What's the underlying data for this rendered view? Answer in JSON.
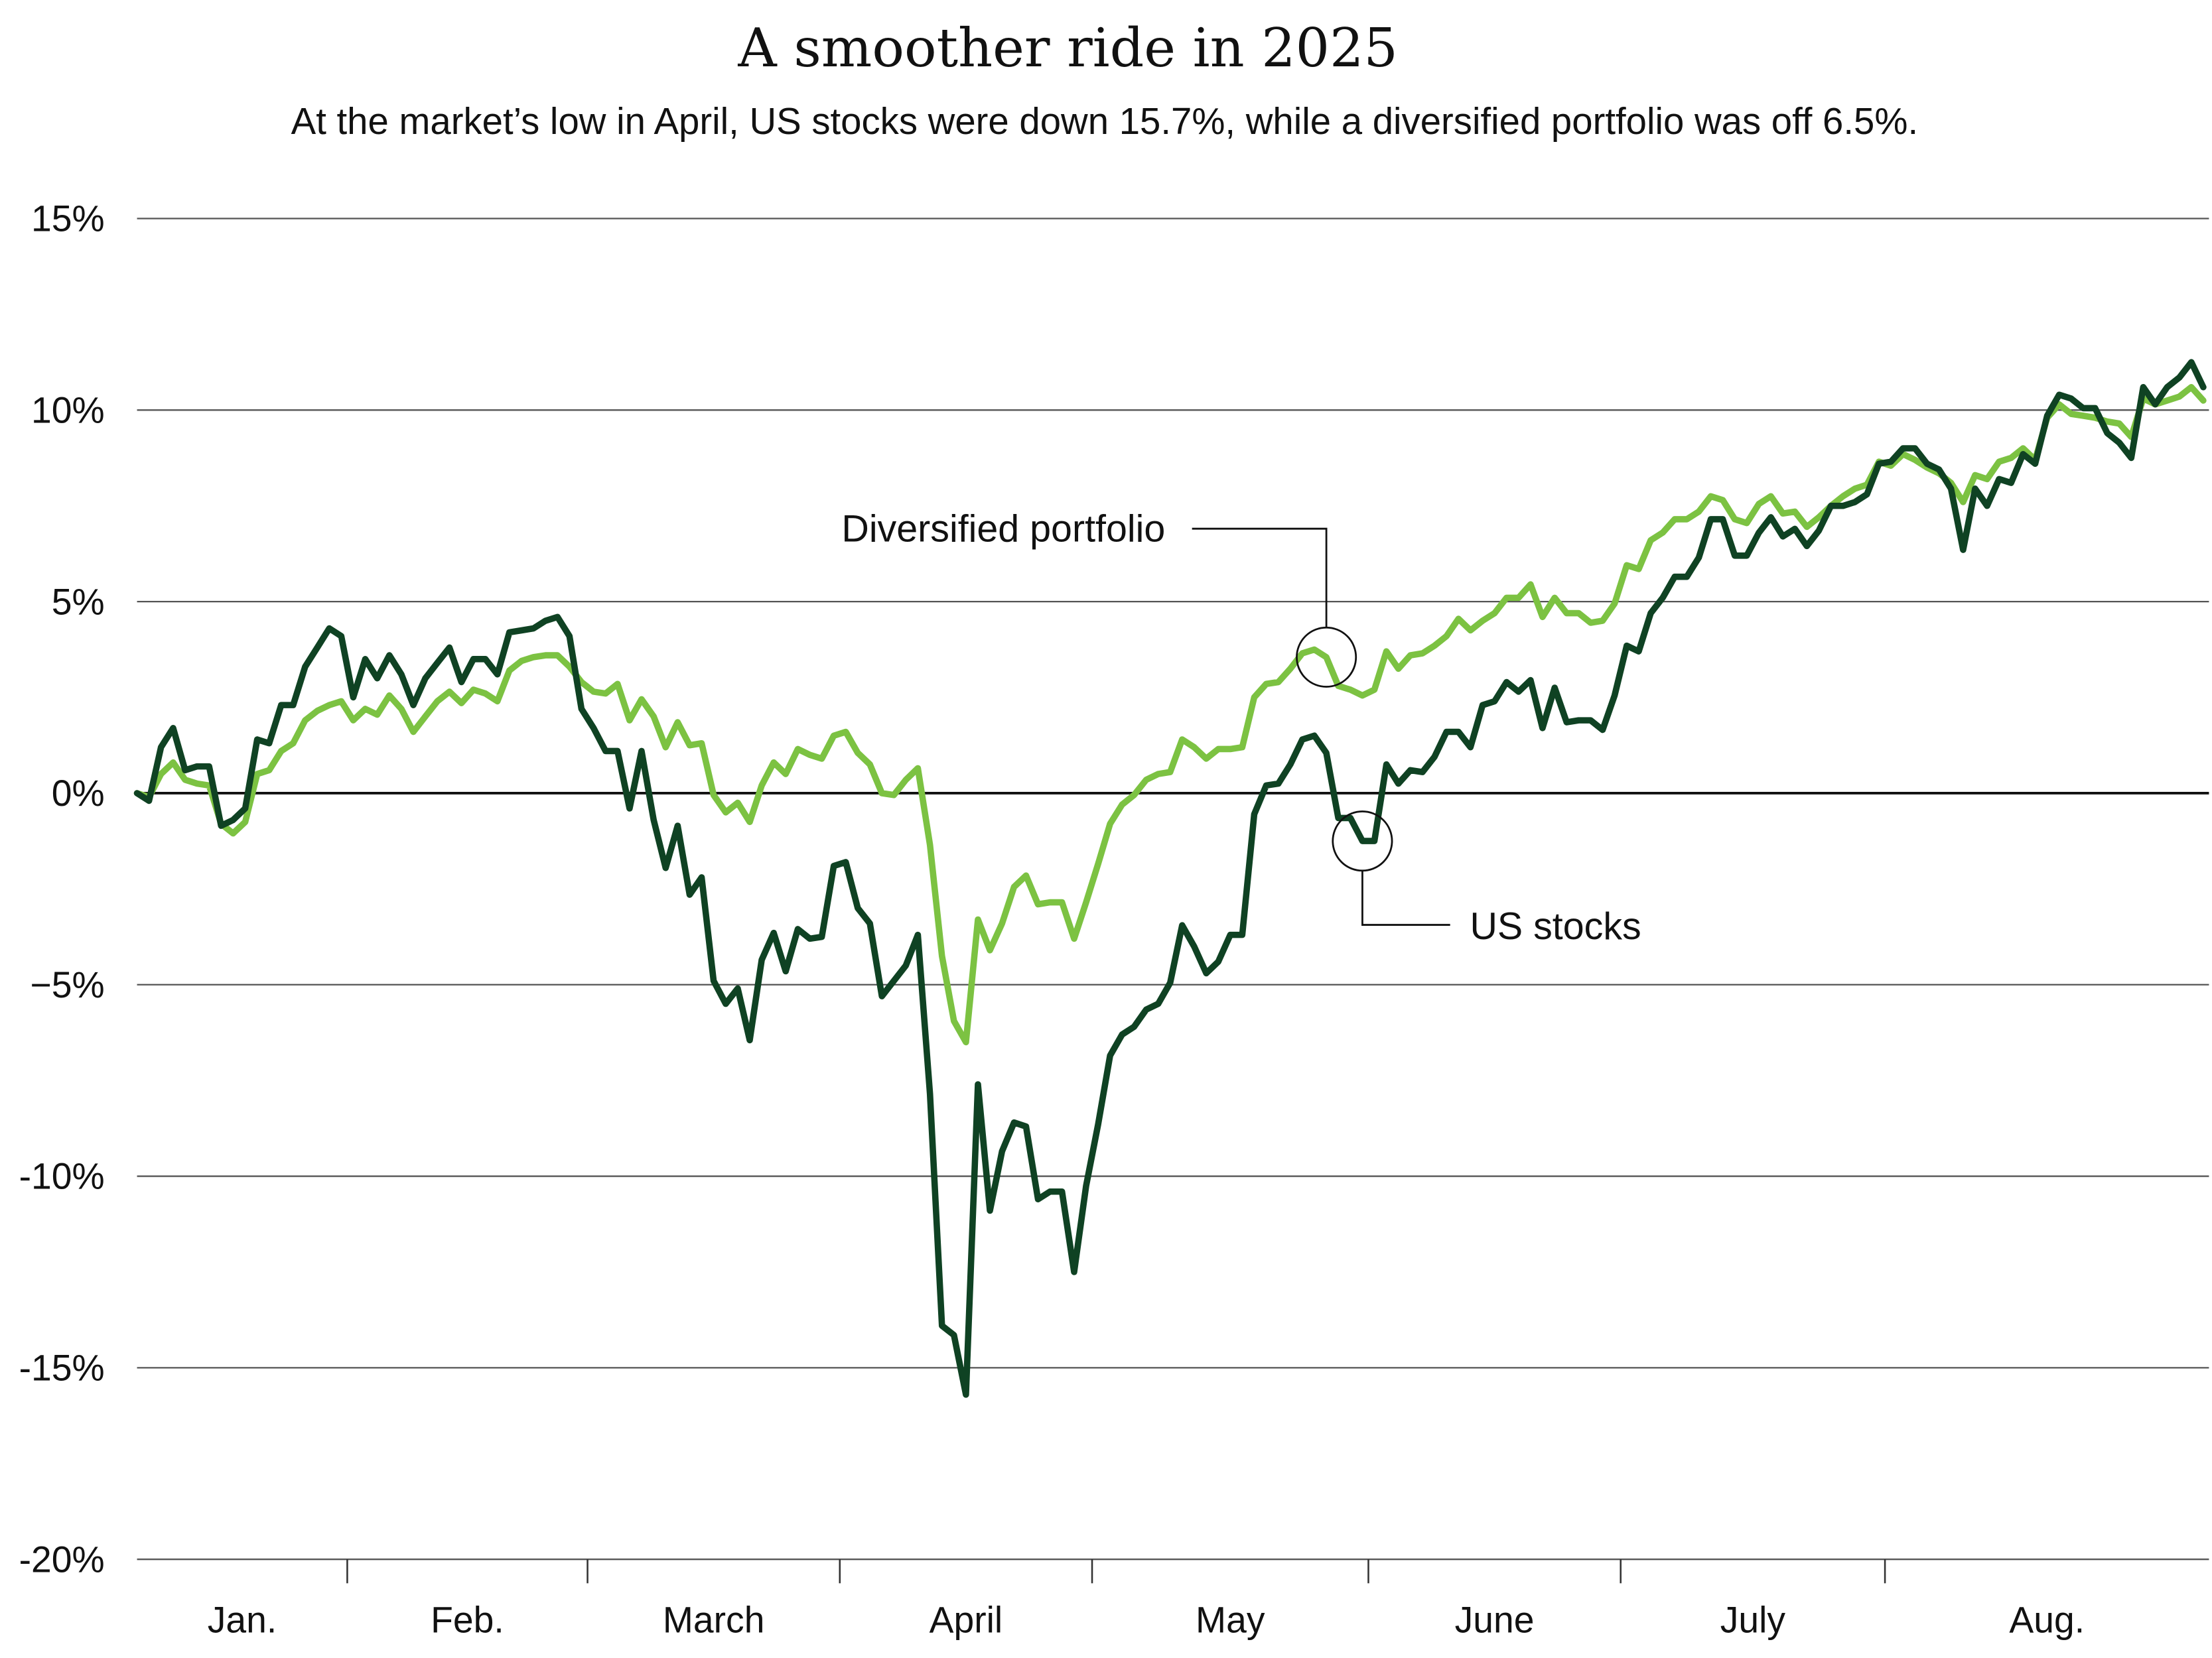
{
  "chart_data": {
    "type": "line",
    "title": "A smoother ride in 2025",
    "subtitle": "At the market’s low in April, US stocks were down 15.7%, while a diversified portfolio was off 6.5%.",
    "xlabel": "",
    "ylabel": "",
    "ylim": [
      -20,
      15
    ],
    "yticks": [
      15,
      10,
      5,
      0,
      -5,
      -10,
      -15,
      -20
    ],
    "ytick_labels": [
      "15%",
      "10%",
      "5%",
      "0%",
      "−5%",
      "-10%",
      "-15%",
      "-20%"
    ],
    "xtick_labels": [
      "Jan.",
      "Feb.",
      "March",
      "April",
      "May",
      "June",
      "July",
      "Aug."
    ],
    "grid": true,
    "legend": "none (direct annotations)",
    "x": [
      "2024-12-31",
      "2025-01-02",
      "2025-01-03",
      "2025-01-06",
      "2025-01-07",
      "2025-01-08",
      "2025-01-10",
      "2025-01-13",
      "2025-01-14",
      "2025-01-15",
      "2025-01-16",
      "2025-01-17",
      "2025-01-21",
      "2025-01-22",
      "2025-01-24",
      "2025-01-27",
      "2025-01-29",
      "2025-01-31",
      "2025-02-03",
      "2025-02-04",
      "2025-02-05",
      "2025-02-06",
      "2025-02-07",
      "2025-02-10",
      "2025-02-11",
      "2025-02-12",
      "2025-02-13",
      "2025-02-14",
      "2025-02-17",
      "2025-02-18",
      "2025-02-19",
      "2025-02-20",
      "2025-02-21",
      "2025-02-24",
      "2025-02-25",
      "2025-02-26",
      "2025-02-27",
      "2025-02-28",
      "2025-03-03",
      "2025-03-04",
      "2025-03-05",
      "2025-03-06",
      "2025-03-07",
      "2025-03-10",
      "2025-03-11",
      "2025-03-12",
      "2025-03-13",
      "2025-03-14",
      "2025-03-17",
      "2025-03-18",
      "2025-03-19",
      "2025-03-20",
      "2025-03-21",
      "2025-03-24",
      "2025-03-25",
      "2025-03-26",
      "2025-03-27",
      "2025-03-28",
      "2025-03-31",
      "2025-04-01",
      "2025-04-02",
      "2025-04-03",
      "2025-04-04",
      "2025-04-07",
      "2025-04-08",
      "2025-04-09",
      "2025-04-10",
      "2025-04-11",
      "2025-04-14",
      "2025-04-15",
      "2025-04-16",
      "2025-04-17",
      "2025-04-21",
      "2025-04-22",
      "2025-04-23",
      "2025-04-24",
      "2025-04-25",
      "2025-04-28",
      "2025-04-29",
      "2025-04-30",
      "2025-05-01",
      "2025-05-02",
      "2025-05-05",
      "2025-05-06",
      "2025-05-07",
      "2025-05-08",
      "2025-05-09",
      "2025-05-12",
      "2025-05-13",
      "2025-05-14",
      "2025-05-15",
      "2025-05-16",
      "2025-05-19",
      "2025-05-20",
      "2025-05-21",
      "2025-05-22",
      "2025-05-23",
      "2025-05-26",
      "2025-05-27",
      "2025-05-28",
      "2025-05-29",
      "2025-05-30",
      "2025-05-31",
      "2025-06-02",
      "2025-06-03",
      "2025-06-04",
      "2025-06-05",
      "2025-06-06",
      "2025-06-09",
      "2025-06-10",
      "2025-06-11",
      "2025-06-12",
      "2025-06-13",
      "2025-06-16",
      "2025-06-17",
      "2025-06-18",
      "2025-06-20",
      "2025-06-23",
      "2025-06-24",
      "2025-06-25",
      "2025-06-26",
      "2025-06-27",
      "2025-06-28",
      "2025-06-30",
      "2025-07-01",
      "2025-07-02",
      "2025-07-03",
      "2025-07-07",
      "2025-07-08",
      "2025-07-09",
      "2025-07-10",
      "2025-07-11",
      "2025-07-14",
      "2025-07-15",
      "2025-07-16",
      "2025-07-17",
      "2025-07-18",
      "2025-07-21",
      "2025-07-22",
      "2025-07-23",
      "2025-07-24",
      "2025-07-25",
      "2025-07-28",
      "2025-07-29",
      "2025-07-30",
      "2025-07-31",
      "2025-08-01",
      "2025-08-02",
      "2025-08-04",
      "2025-08-05",
      "2025-08-06",
      "2025-08-07",
      "2025-08-08",
      "2025-08-09",
      "2025-08-11",
      "2025-08-12",
      "2025-08-13",
      "2025-08-14",
      "2025-08-15",
      "2025-08-16",
      "2025-08-18",
      "2025-08-19",
      "2025-08-20",
      "2025-08-21",
      "2025-08-22",
      "2025-08-23",
      "2025-08-25",
      "2025-08-26",
      "2025-08-27",
      "2025-08-28",
      "2025-08-29",
      "2025-08-30",
      "2025-08-31"
    ],
    "series": [
      {
        "name": "US stocks",
        "color": "#0f4223",
        "values": [
          0,
          -0.2,
          1.2,
          1.7,
          0.6,
          0.7,
          0.7,
          -0.85,
          -0.7,
          -0.4,
          1.4,
          1.3,
          2.3,
          2.3,
          3.3,
          3.8,
          4.3,
          4.1,
          2.5,
          3.5,
          3.0,
          3.6,
          3.1,
          2.3,
          3.0,
          3.4,
          3.8,
          2.9,
          3.5,
          3.5,
          3.1,
          4.2,
          4.25,
          4.3,
          4.5,
          4.6,
          4.1,
          2.2,
          1.7,
          1.1,
          1.1,
          -0.4,
          1.1,
          -0.7,
          -1.95,
          -0.85,
          -2.65,
          -2.2,
          -4.9,
          -5.5,
          -5.1,
          -6.45,
          -4.35,
          -3.65,
          -4.65,
          -3.55,
          -3.8,
          -3.75,
          -1.9,
          -1.8,
          -3.0,
          -3.4,
          -5.3,
          -4.9,
          -4.5,
          -3.7,
          -7.85,
          -13.9,
          -14.15,
          -15.7,
          -7.6,
          -10.9,
          -9.35,
          -8.6,
          -8.7,
          -10.6,
          -10.4,
          -10.4,
          -12.5,
          -10.25,
          -8.65,
          -6.85,
          -6.3,
          -6.1,
          -5.65,
          -5.5,
          -4.95,
          -3.45,
          -4.0,
          -4.7,
          -4.4,
          -3.7,
          -3.7,
          -0.55,
          0.2,
          0.25,
          0.75,
          1.4,
          1.5,
          1.05,
          -0.65,
          -0.65,
          -1.25,
          -1.25,
          0.75,
          0.25,
          0.6,
          0.55,
          0.95,
          1.6,
          1.6,
          1.2,
          2.3,
          2.4,
          2.9,
          2.65,
          2.95,
          1.7,
          2.75,
          1.85,
          1.9,
          1.9,
          1.65,
          2.55,
          3.85,
          3.7,
          4.7,
          5.1,
          5.65,
          5.65,
          6.15,
          7.15,
          7.15,
          6.2,
          6.2,
          6.8,
          7.2,
          6.7,
          6.9,
          6.45,
          6.85,
          7.5,
          7.5,
          7.6,
          7.8,
          8.6,
          8.65,
          9.0,
          9.0,
          8.6,
          8.45,
          7.95,
          6.35,
          7.95,
          7.5,
          8.2,
          8.1,
          8.85,
          8.6,
          9.85,
          10.4,
          10.3,
          10.05,
          10.05,
          9.4,
          9.15,
          8.75,
          10.6,
          10.15,
          10.6,
          10.85,
          11.25,
          10.6
        ]
      },
      {
        "name": "Diversified portfolio",
        "color": "#7cc242",
        "values": [
          0,
          -0.1,
          0.5,
          0.8,
          0.35,
          0.25,
          0.2,
          -0.8,
          -1.05,
          -0.75,
          0.5,
          0.6,
          1.1,
          1.3,
          1.9,
          2.15,
          2.3,
          2.4,
          1.9,
          2.2,
          2.05,
          2.55,
          2.2,
          1.6,
          2.0,
          2.4,
          2.65,
          2.35,
          2.7,
          2.6,
          2.4,
          3.2,
          3.45,
          3.55,
          3.6,
          3.6,
          3.3,
          2.9,
          2.65,
          2.6,
          2.85,
          1.9,
          2.45,
          2.0,
          1.2,
          1.85,
          1.25,
          1.3,
          -0.05,
          -0.5,
          -0.25,
          -0.75,
          0.2,
          0.8,
          0.5,
          1.15,
          1.0,
          0.9,
          1.5,
          1.6,
          1.05,
          0.75,
          0.0,
          -0.05,
          0.35,
          0.65,
          -1.35,
          -4.25,
          -5.95,
          -6.5,
          -3.3,
          -4.1,
          -3.4,
          -2.45,
          -2.15,
          -2.9,
          -2.85,
          -2.85,
          -3.8,
          -2.85,
          -1.85,
          -0.8,
          -0.3,
          -0.05,
          0.35,
          0.5,
          0.55,
          1.4,
          1.2,
          0.9,
          1.15,
          1.15,
          1.2,
          2.5,
          2.85,
          2.9,
          3.25,
          3.65,
          3.75,
          3.55,
          2.8,
          2.7,
          2.55,
          2.7,
          3.7,
          3.25,
          3.6,
          3.65,
          3.85,
          4.1,
          4.55,
          4.25,
          4.5,
          4.7,
          5.1,
          5.1,
          5.45,
          4.6,
          5.1,
          4.7,
          4.7,
          4.45,
          4.5,
          4.95,
          5.95,
          5.85,
          6.6,
          6.8,
          7.15,
          7.15,
          7.35,
          7.75,
          7.65,
          7.15,
          7.05,
          7.55,
          7.75,
          7.3,
          7.35,
          6.95,
          7.2,
          7.5,
          7.75,
          7.95,
          8.05,
          8.65,
          8.55,
          8.85,
          8.7,
          8.5,
          8.35,
          8.1,
          7.6,
          8.3,
          8.2,
          8.65,
          8.75,
          9.0,
          8.7,
          9.8,
          10.15,
          9.9,
          9.85,
          9.8,
          9.7,
          9.65,
          9.3,
          10.3,
          10.15,
          10.25,
          10.35,
          10.6,
          10.25
        ]
      }
    ],
    "annotations": [
      {
        "text": "Diversified portfolio",
        "series": "Diversified portfolio",
        "x": "2025-05-28"
      },
      {
        "text": "US stocks",
        "series": "US stocks",
        "x": "2025-05-31"
      }
    ]
  }
}
